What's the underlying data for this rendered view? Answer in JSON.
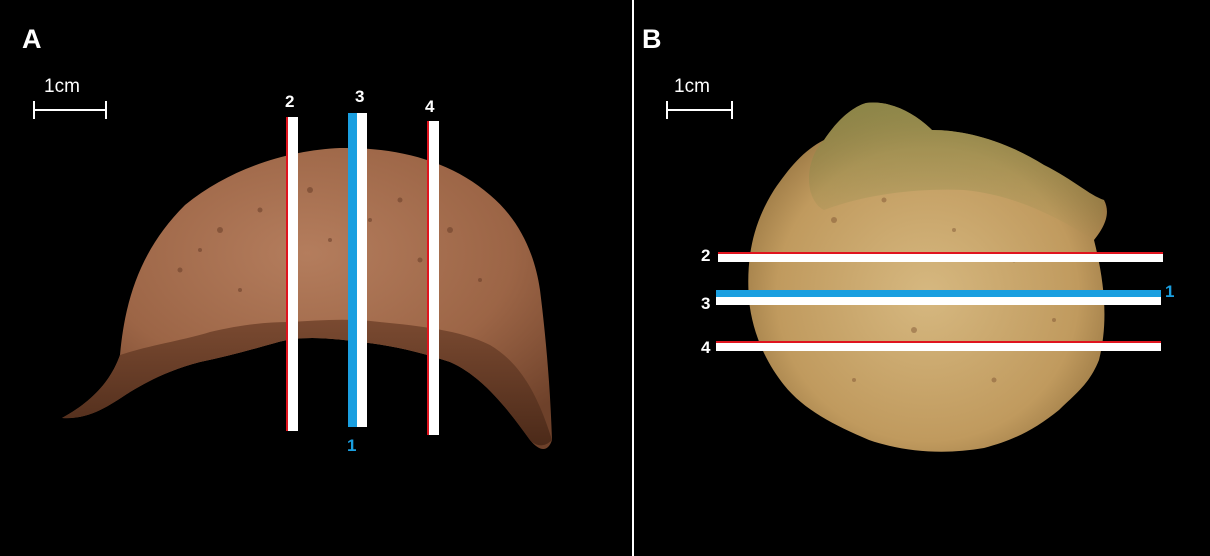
{
  "panel_a": {
    "letter": "A",
    "scale_label": "1cm",
    "line_labels": {
      "l1": "1",
      "l2": "2",
      "l3": "3",
      "l4": "4"
    }
  },
  "panel_b": {
    "letter": "B",
    "scale_label": "1cm",
    "line_labels": {
      "l1": "1",
      "l2": "2",
      "l3": "3",
      "l4": "4"
    }
  },
  "colors": {
    "section_blue": "#1a9fe0",
    "section_red": "#e0141e",
    "section_white": "#ffffff",
    "specimen_a": "#a2684a",
    "specimen_b": "#c9a56a"
  }
}
